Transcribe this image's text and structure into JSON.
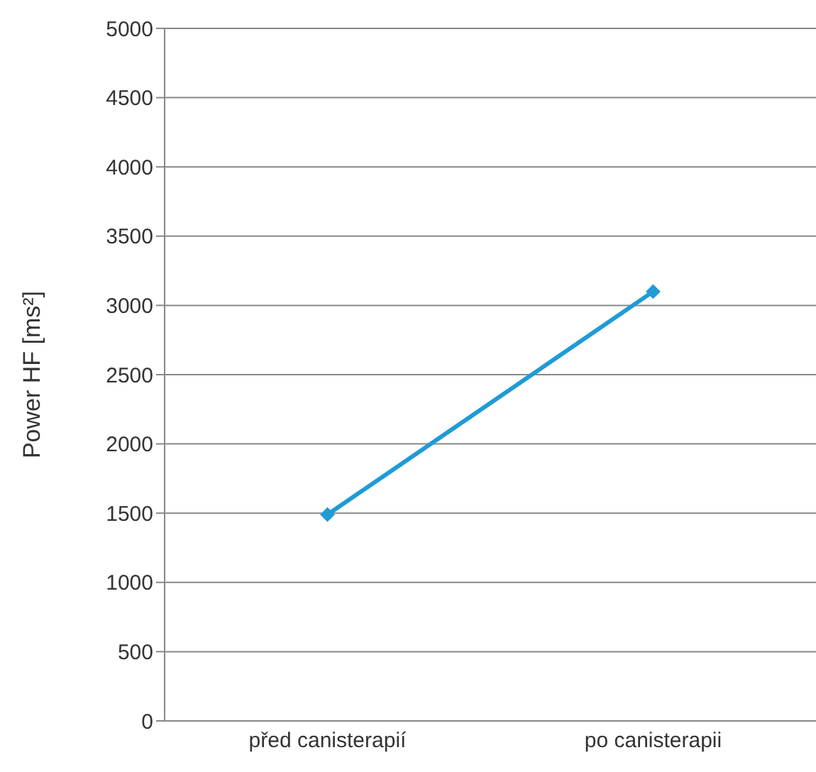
{
  "chart_data": {
    "type": "line",
    "ylabel": "Power  HF  [ms²]",
    "categories": [
      "před canisterapií",
      "po canisterapii"
    ],
    "series": [
      {
        "color": "#1f9bd7",
        "values": [
          1490,
          3100
        ]
      }
    ],
    "ylim": [
      0,
      5000
    ],
    "yticks": [
      0,
      500,
      1000,
      1500,
      2000,
      2500,
      3000,
      3500,
      4000,
      4500,
      5000
    ],
    "grid": "y",
    "legend": false,
    "marker": "diamond",
    "line_style": "solid"
  }
}
